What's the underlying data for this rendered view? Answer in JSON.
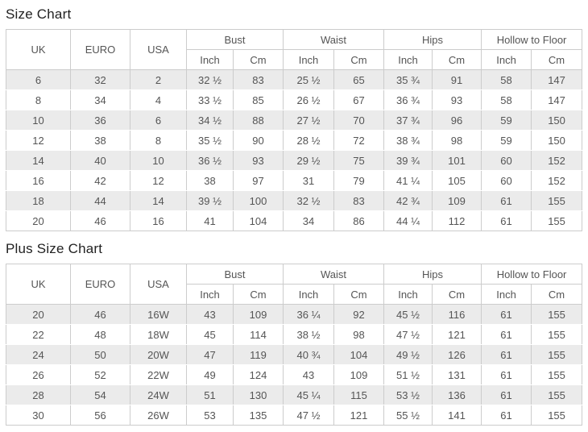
{
  "colors": {
    "row_stripe": "#ebebeb",
    "table_border": "#cccccc",
    "cell_text": "#555555",
    "title_text": "#222222",
    "background": "#ffffff"
  },
  "chart_data": [
    {
      "type": "table",
      "title": "Size Chart",
      "plain_columns": [
        "UK",
        "EURO",
        "USA"
      ],
      "column_groups": [
        {
          "label": "Bust",
          "sub": [
            "Inch",
            "Cm"
          ]
        },
        {
          "label": "Waist",
          "sub": [
            "Inch",
            "Cm"
          ]
        },
        {
          "label": "Hips",
          "sub": [
            "Inch",
            "Cm"
          ]
        },
        {
          "label": "Hollow to Floor",
          "sub": [
            "Inch",
            "Cm"
          ]
        }
      ],
      "rows": [
        [
          "6",
          "32",
          "2",
          "32 ½",
          "83",
          "25 ½",
          "65",
          "35 ¾",
          "91",
          "58",
          "147"
        ],
        [
          "8",
          "34",
          "4",
          "33 ½",
          "85",
          "26 ½",
          "67",
          "36 ¾",
          "93",
          "58",
          "147"
        ],
        [
          "10",
          "36",
          "6",
          "34 ½",
          "88",
          "27 ½",
          "70",
          "37 ¾",
          "96",
          "59",
          "150"
        ],
        [
          "12",
          "38",
          "8",
          "35 ½",
          "90",
          "28 ½",
          "72",
          "38 ¾",
          "98",
          "59",
          "150"
        ],
        [
          "14",
          "40",
          "10",
          "36 ½",
          "93",
          "29 ½",
          "75",
          "39 ¾",
          "101",
          "60",
          "152"
        ],
        [
          "16",
          "42",
          "12",
          "38",
          "97",
          "31",
          "79",
          "41 ¼",
          "105",
          "60",
          "152"
        ],
        [
          "18",
          "44",
          "14",
          "39 ½",
          "100",
          "32 ½",
          "83",
          "42 ¾",
          "109",
          "61",
          "155"
        ],
        [
          "20",
          "46",
          "16",
          "41",
          "104",
          "34",
          "86",
          "44 ¼",
          "112",
          "61",
          "155"
        ]
      ]
    },
    {
      "type": "table",
      "title": "Plus Size Chart",
      "plain_columns": [
        "UK",
        "EURO",
        "USA"
      ],
      "column_groups": [
        {
          "label": "Bust",
          "sub": [
            "Inch",
            "Cm"
          ]
        },
        {
          "label": "Waist",
          "sub": [
            "Inch",
            "Cm"
          ]
        },
        {
          "label": "Hips",
          "sub": [
            "Inch",
            "Cm"
          ]
        },
        {
          "label": "Hollow to Floor",
          "sub": [
            "Inch",
            "Cm"
          ]
        }
      ],
      "rows": [
        [
          "20",
          "46",
          "16W",
          "43",
          "109",
          "36 ¼",
          "92",
          "45 ½",
          "116",
          "61",
          "155"
        ],
        [
          "22",
          "48",
          "18W",
          "45",
          "114",
          "38 ½",
          "98",
          "47 ½",
          "121",
          "61",
          "155"
        ],
        [
          "24",
          "50",
          "20W",
          "47",
          "119",
          "40 ¾",
          "104",
          "49 ½",
          "126",
          "61",
          "155"
        ],
        [
          "26",
          "52",
          "22W",
          "49",
          "124",
          "43",
          "109",
          "51 ½",
          "131",
          "61",
          "155"
        ],
        [
          "28",
          "54",
          "24W",
          "51",
          "130",
          "45 ¼",
          "115",
          "53 ½",
          "136",
          "61",
          "155"
        ],
        [
          "30",
          "56",
          "26W",
          "53",
          "135",
          "47 ½",
          "121",
          "55 ½",
          "141",
          "61",
          "155"
        ]
      ]
    }
  ]
}
